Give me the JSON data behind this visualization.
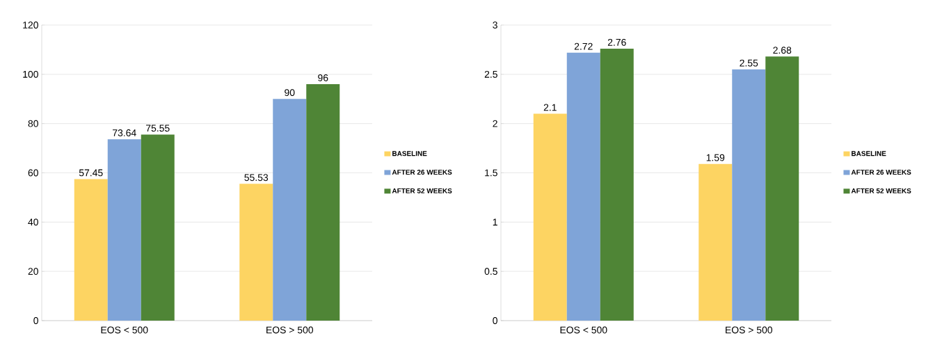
{
  "chart_data": [
    {
      "type": "bar",
      "categories": [
        "EOS < 500",
        "EOS > 500"
      ],
      "series": [
        {
          "name": "BASELINE",
          "color": "#fdd462",
          "values": [
            57.45,
            55.53
          ]
        },
        {
          "name": "AFTER 26 WEEKS",
          "color": "#7fa4d8",
          "values": [
            73.64,
            90
          ]
        },
        {
          "name": "AFTER 52 WEEKS",
          "color": "#4f8536",
          "values": [
            75.55,
            96
          ]
        }
      ],
      "ylim": [
        0,
        120
      ],
      "yticks": [
        0,
        20,
        40,
        60,
        80,
        100,
        120
      ],
      "grid": "y",
      "legend": "right",
      "data_labels": true
    },
    {
      "type": "bar",
      "categories": [
        "EOS < 500",
        "EOS > 500"
      ],
      "series": [
        {
          "name": "BASELINE",
          "color": "#fdd462",
          "values": [
            2.1,
            1.59
          ]
        },
        {
          "name": "AFTER 26 WEEKS",
          "color": "#7fa4d8",
          "values": [
            2.72,
            2.55
          ]
        },
        {
          "name": "AFTER 52 WEEKS",
          "color": "#4f8536",
          "values": [
            2.76,
            2.68
          ]
        }
      ],
      "ylim": [
        0,
        3
      ],
      "yticks": [
        0,
        0.5,
        1,
        1.5,
        2,
        2.5,
        3
      ],
      "grid": "y",
      "legend": "right",
      "data_labels": true
    }
  ]
}
